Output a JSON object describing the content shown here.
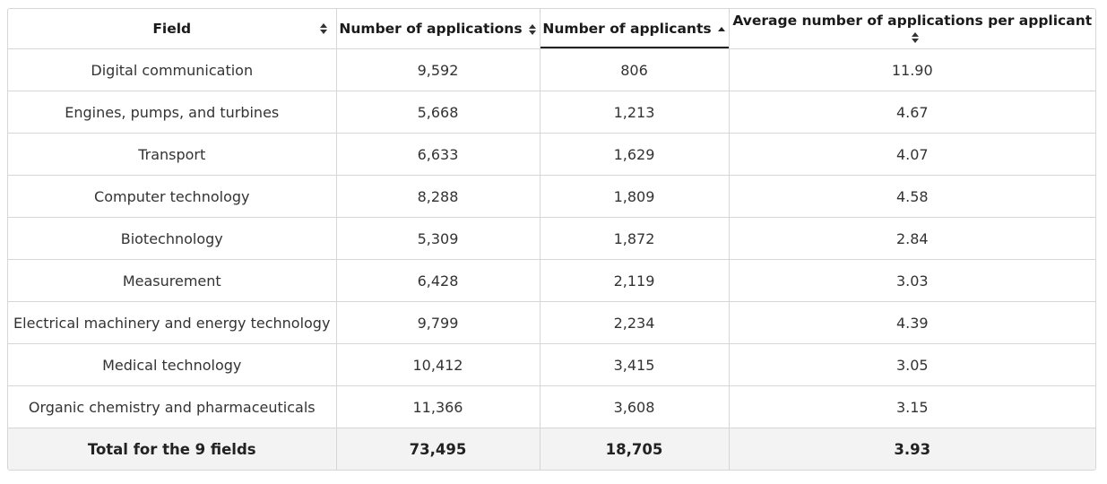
{
  "table": {
    "headers": [
      "Field",
      "Number of applications",
      "Number of applicants",
      "Average number of applications per applicant"
    ],
    "rows": [
      [
        "Digital communication",
        "9,592",
        "806",
        "11.90"
      ],
      [
        "Engines, pumps, and turbines",
        "5,668",
        "1,213",
        "4.67"
      ],
      [
        "Transport",
        "6,633",
        "1,629",
        "4.07"
      ],
      [
        "Computer technology",
        "8,288",
        "1,809",
        "4.58"
      ],
      [
        "Biotechnology",
        "5,309",
        "1,872",
        "2.84"
      ],
      [
        "Measurement",
        "6,428",
        "2,119",
        "3.03"
      ],
      [
        "Electrical machinery and energy technology",
        "9,799",
        "2,234",
        "4.39"
      ],
      [
        "Medical technology",
        "10,412",
        "3,415",
        "3.05"
      ],
      [
        "Organic chemistry and pharmaceuticals",
        "11,366",
        "3,608",
        "3.15"
      ]
    ],
    "total": [
      "Total for the 9 fields",
      "73,495",
      "18,705",
      "3.93"
    ]
  }
}
